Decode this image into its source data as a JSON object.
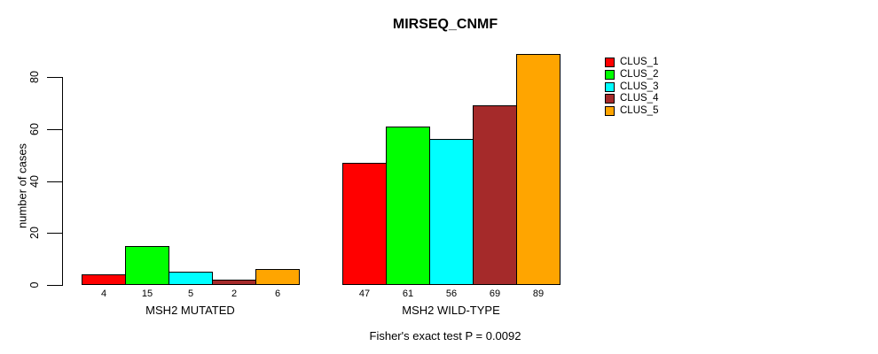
{
  "chart_data": {
    "type": "bar",
    "title": "MIRSEQ_CNMF",
    "ylabel": "number of cases",
    "xlabel": "",
    "ylim": [
      0,
      89
    ],
    "yticks": [
      0,
      20,
      40,
      60,
      80
    ],
    "grid": false,
    "legend_position": "right",
    "categories": [
      "MSH2 MUTATED",
      "MSH2 WILD-TYPE"
    ],
    "series": [
      {
        "name": "CLUS_1",
        "color": "#FF0000",
        "values": [
          4,
          47
        ]
      },
      {
        "name": "CLUS_2",
        "color": "#00FF00",
        "values": [
          15,
          61
        ]
      },
      {
        "name": "CLUS_3",
        "color": "#00FFFF",
        "values": [
          5,
          56
        ]
      },
      {
        "name": "CLUS_4",
        "color": "#A52A2A",
        "values": [
          2,
          69
        ]
      },
      {
        "name": "CLUS_5",
        "color": "#FFA500",
        "values": [
          6,
          89
        ]
      }
    ],
    "bar_value_labels": [
      [
        "4",
        "15",
        "5",
        "2",
        "6"
      ],
      [
        "47",
        "61",
        "56",
        "69",
        "89"
      ]
    ],
    "annotation": "Fisher's exact test P = 0.0092",
    "axis_color": "#000000",
    "bar_border_color": "#000000",
    "background_color": "#FFFFFF"
  }
}
